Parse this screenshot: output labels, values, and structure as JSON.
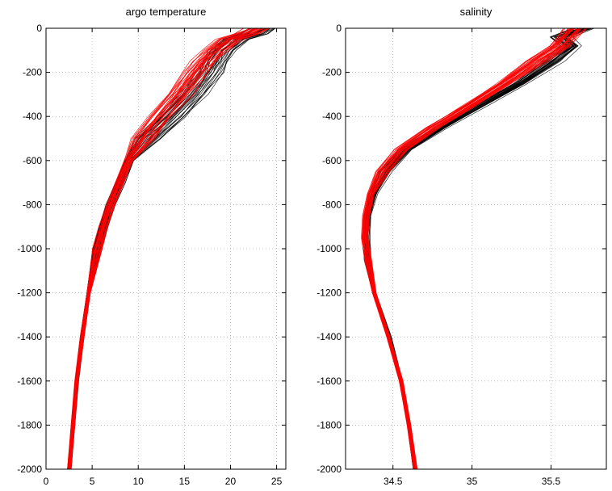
{
  "chart_data": [
    {
      "type": "line",
      "title": "argo temperature",
      "xlabel": "",
      "ylabel": "",
      "xlim": [
        0,
        26
      ],
      "ylim": [
        -2000,
        0
      ],
      "grid": true,
      "xticks": [
        0,
        5,
        10,
        15,
        20,
        25
      ],
      "xtick_labels": [
        "0",
        "5",
        "10",
        "15",
        "20",
        "25"
      ],
      "yticks": [
        0,
        -200,
        -400,
        -600,
        -800,
        -1000,
        -1200,
        -1400,
        -1600,
        -1800,
        -2000
      ],
      "ytick_labels": [
        "0",
        "-200",
        "-400",
        "-600",
        "-800",
        "-1000",
        "-1200",
        "-1400",
        "-1600",
        "-1800",
        "-2000"
      ],
      "series": [
        {
          "color": "#000000",
          "profile_count": 28,
          "y": [
            0,
            -25,
            -50,
            -100,
            -150,
            -200,
            -300,
            -400,
            -500,
            -600,
            -700,
            -800,
            -900,
            -1000,
            -1200,
            -1400,
            -1600,
            -1800,
            -2000
          ],
          "x": [
            23.5,
            22.5,
            20.5,
            19.0,
            18.3,
            17.6,
            15.8,
            13.6,
            11.0,
            9.0,
            8.0,
            7.0,
            6.2,
            5.5,
            4.6,
            3.9,
            3.3,
            2.9,
            2.5
          ]
        },
        {
          "color": "#ff0000",
          "profile_count": 34,
          "y": [
            0,
            -25,
            -50,
            -100,
            -150,
            -200,
            -300,
            -400,
            -500,
            -600,
            -700,
            -800,
            -900,
            -1000,
            -1200,
            -1400,
            -1600,
            -1800,
            -2000
          ],
          "x": [
            22.8,
            21.6,
            19.8,
            18.2,
            17.0,
            16.0,
            14.3,
            12.2,
            10.3,
            8.9,
            7.9,
            7.0,
            6.2,
            5.5,
            4.6,
            3.9,
            3.3,
            2.9,
            2.5
          ]
        }
      ]
    },
    {
      "type": "line",
      "title": "salinity",
      "xlabel": "",
      "ylabel": "",
      "xlim": [
        34.2,
        35.85
      ],
      "ylim": [
        -2000,
        0
      ],
      "grid": true,
      "xticks": [
        34.5,
        35,
        35.5
      ],
      "xtick_labels": [
        "34.5",
        "35",
        "35.5"
      ],
      "yticks": [
        0,
        -200,
        -400,
        -600,
        -800,
        -1000,
        -1200,
        -1400,
        -1600,
        -1800,
        -2000
      ],
      "ytick_labels": [
        "0",
        "-200",
        "-400",
        "-600",
        "-800",
        "-1000",
        "-1200",
        "-1400",
        "-1600",
        "-1800",
        "-2000"
      ],
      "series": [
        {
          "color": "#000000",
          "profile_count": 28,
          "y": [
            0,
            -40,
            -80,
            -150,
            -250,
            -350,
            -450,
            -550,
            -650,
            -750,
            -850,
            -950,
            -1050,
            -1200,
            -1400,
            -1600,
            -1800,
            -2000
          ],
          "x": [
            35.7,
            35.55,
            35.62,
            35.5,
            35.3,
            35.05,
            34.8,
            34.58,
            34.45,
            34.38,
            34.34,
            34.33,
            34.34,
            34.38,
            34.48,
            34.55,
            34.6,
            34.64
          ]
        },
        {
          "color": "#ff0000",
          "profile_count": 34,
          "y": [
            0,
            -40,
            -80,
            -150,
            -250,
            -350,
            -450,
            -550,
            -650,
            -750,
            -850,
            -950,
            -1050,
            -1200,
            -1400,
            -1600,
            -1800,
            -2000
          ],
          "x": [
            35.65,
            35.6,
            35.55,
            35.4,
            35.2,
            34.98,
            34.75,
            34.55,
            34.43,
            34.36,
            34.33,
            34.32,
            34.34,
            34.38,
            34.47,
            34.55,
            34.6,
            34.64
          ]
        }
      ]
    }
  ]
}
